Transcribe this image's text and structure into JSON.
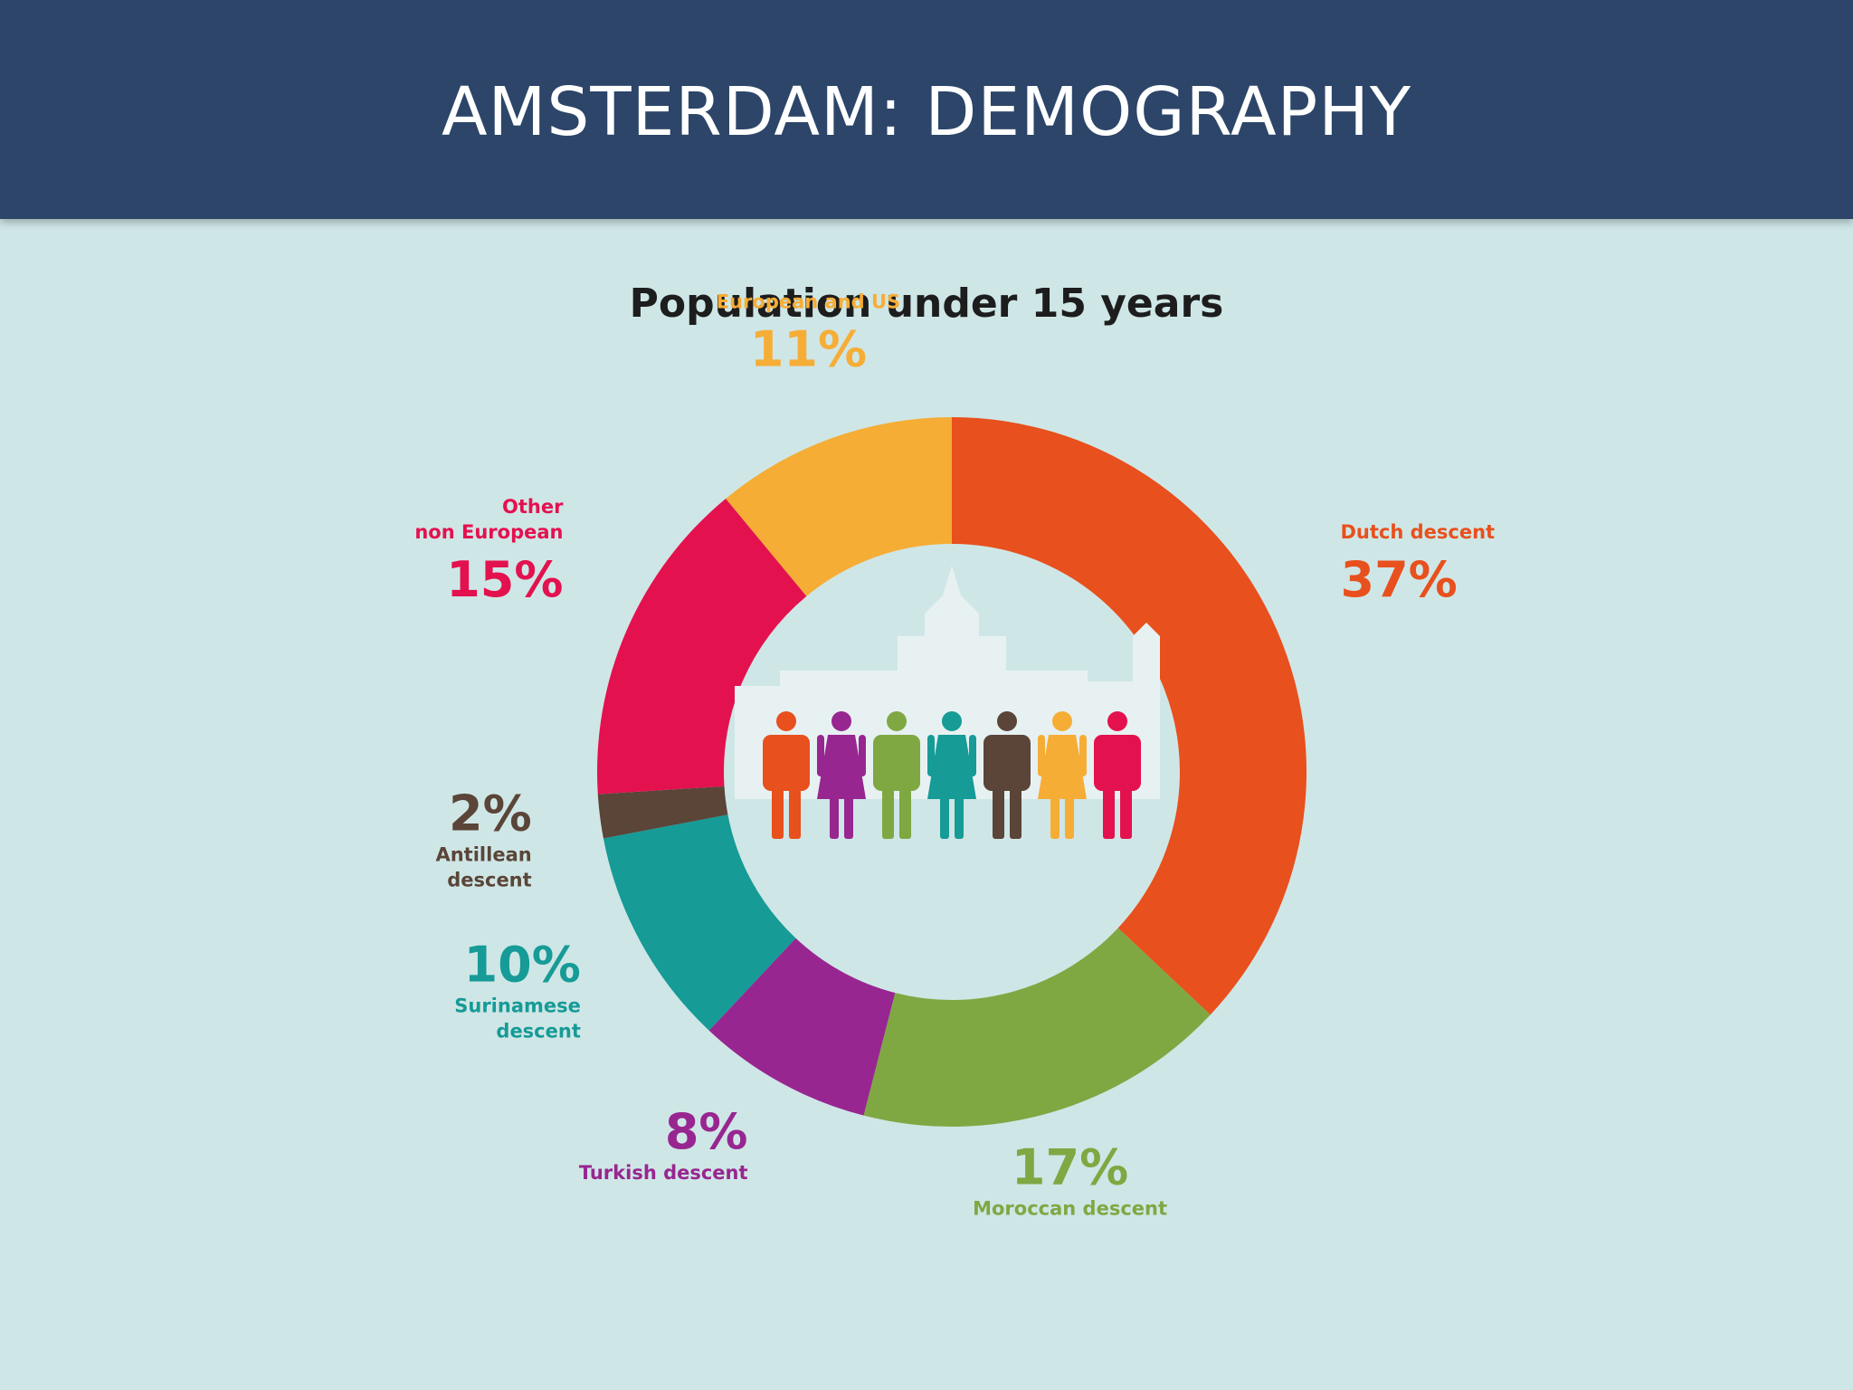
{
  "header": {
    "title": "AMSTERDAM: DEMOGRAPHY"
  },
  "colors": {
    "header_bg": "#2c4569",
    "slide_bg": "#cfe6e6",
    "dutch": "#e8501d",
    "moroccan": "#7fa843",
    "turkish": "#982690",
    "surinamese": "#169b97",
    "antillean": "#5a4538",
    "other_non_european": "#e4114f",
    "european_us": "#f6ad36"
  },
  "chart_data": {
    "type": "pie",
    "title": "Population under 15 years",
    "slices": [
      {
        "key": "dutch",
        "label": [
          "Dutch descent"
        ],
        "value": 37,
        "display": "37%",
        "color": "#e8501d"
      },
      {
        "key": "moroccan",
        "label": [
          "Moroccan descent"
        ],
        "value": 17,
        "display": "17%",
        "color": "#7fa843"
      },
      {
        "key": "turkish",
        "label": [
          "Turkish descent"
        ],
        "value": 8,
        "display": "8%",
        "color": "#982690"
      },
      {
        "key": "surinamese",
        "label": [
          "Surinamese",
          "descent"
        ],
        "value": 10,
        "display": "10%",
        "color": "#169b97"
      },
      {
        "key": "antillean",
        "label": [
          "Antillean",
          "descent"
        ],
        "value": 2,
        "display": "2%",
        "color": "#5a4538"
      },
      {
        "key": "other_non_european",
        "label": [
          "Other",
          "non European"
        ],
        "value": 15,
        "display": "15%",
        "color": "#e4114f"
      },
      {
        "key": "european_us",
        "label": [
          "European and US"
        ],
        "value": 11,
        "display": "11%",
        "color": "#f6ad36"
      }
    ],
    "figures": [
      {
        "gender": "male",
        "color": "#e8501d"
      },
      {
        "gender": "female",
        "color": "#982690"
      },
      {
        "gender": "male",
        "color": "#7fa843"
      },
      {
        "gender": "female",
        "color": "#169b97"
      },
      {
        "gender": "male",
        "color": "#5a4538"
      },
      {
        "gender": "female",
        "color": "#f6ad36"
      },
      {
        "gender": "male",
        "color": "#e4114f"
      }
    ]
  }
}
